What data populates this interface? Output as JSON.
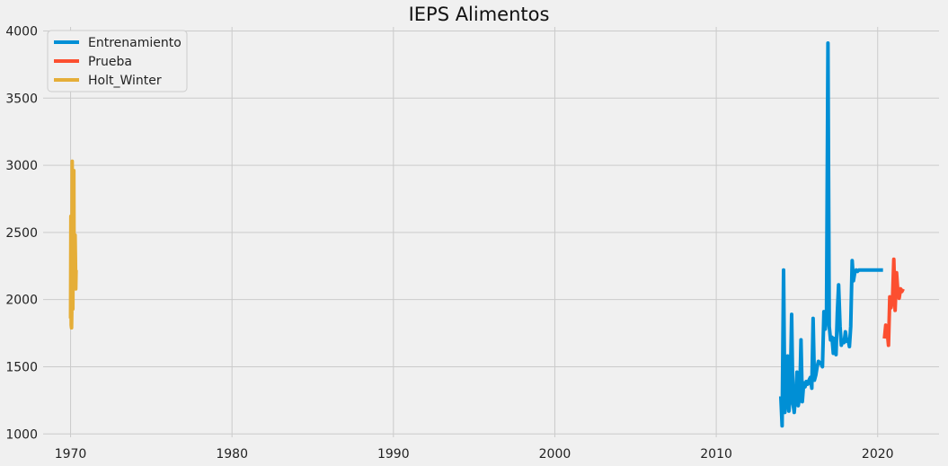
{
  "chart_data": {
    "type": "line",
    "title": "IEPS Alimentos",
    "xlabel": "",
    "ylabel": "",
    "xlim": [
      1968.3,
      2023.8
    ],
    "ylim": [
      975,
      4030
    ],
    "x_ticks": [
      1970,
      1980,
      1990,
      2000,
      2010,
      2020
    ],
    "y_ticks": [
      1000,
      1500,
      2000,
      2500,
      3000,
      3500,
      4000
    ],
    "grid": true,
    "legend_position": "top-left",
    "series": [
      {
        "name": "Entrenamiento",
        "color": "#008fd5",
        "x": [
          2014.0,
          2014.08,
          2014.17,
          2014.25,
          2014.33,
          2014.42,
          2014.5,
          2014.58,
          2014.67,
          2014.75,
          2014.83,
          2014.92,
          2015.0,
          2015.08,
          2015.17,
          2015.25,
          2015.33,
          2015.42,
          2015.5,
          2015.58,
          2015.67,
          2015.75,
          2015.83,
          2015.92,
          2016.0,
          2016.08,
          2016.17,
          2016.25,
          2016.33,
          2016.42,
          2016.5,
          2016.58,
          2016.67,
          2016.75,
          2016.83,
          2016.92,
          2017.0,
          2017.08,
          2017.17,
          2017.25,
          2017.33,
          2017.42,
          2017.5,
          2017.58,
          2017.67,
          2017.75,
          2017.83,
          2017.92,
          2018.0,
          2018.08,
          2018.17,
          2018.25,
          2018.33,
          2018.42,
          2018.5,
          2018.58,
          2018.67,
          2018.75,
          2018.83,
          2018.92,
          2019.0,
          2019.08,
          2019.17,
          2019.25,
          2019.33,
          2019.42,
          2019.5,
          2019.58,
          2019.67,
          2019.75,
          2019.83,
          2019.92,
          2020.0,
          2020.08,
          2020.17,
          2020.25,
          2020.33
        ],
        "y": [
          1280,
          1060,
          2220,
          1160,
          1250,
          1580,
          1170,
          1290,
          1890,
          1230,
          1160,
          1300,
          1460,
          1210,
          1280,
          1700,
          1240,
          1380,
          1350,
          1390,
          1370,
          1400,
          1420,
          1340,
          1860,
          1400,
          1440,
          1500,
          1540,
          1530,
          1520,
          1500,
          1910,
          1780,
          1870,
          3910,
          1800,
          1700,
          1720,
          1600,
          1710,
          1590,
          1900,
          2110,
          1800,
          1660,
          1700,
          1680,
          1760,
          1690,
          1700,
          1650,
          1800,
          2290,
          2140,
          2200,
          2220,
          2210,
          2220,
          2220,
          2220,
          2220,
          2220,
          2220,
          2220,
          2220,
          2220,
          2220,
          2220,
          2220,
          2220,
          2220,
          2220,
          2220,
          2220,
          2220,
          2220
        ]
      },
      {
        "name": "Prueba",
        "color": "#fc4f30",
        "x": [
          2020.42,
          2020.5,
          2020.58,
          2020.67,
          2020.75,
          2020.83,
          2020.92,
          2021.0,
          2021.08,
          2021.17,
          2021.25,
          2021.33,
          2021.42,
          2021.5,
          2021.58
        ],
        "y": [
          1710,
          1810,
          1780,
          1660,
          2020,
          1940,
          2000,
          2300,
          1920,
          2200,
          2060,
          2010,
          2080,
          2060,
          2080
        ]
      },
      {
        "name": "Holt_Winter",
        "color": "#e5ae38",
        "x": [
          1970.0,
          1970.02,
          1970.04,
          1970.06,
          1970.08,
          1970.1,
          1970.12,
          1970.14,
          1970.16,
          1970.18,
          1970.2,
          1970.22,
          1970.24,
          1970.26,
          1970.28,
          1970.3,
          1970.32,
          1970.34
        ],
        "y": [
          1860,
          2620,
          1810,
          1790,
          1950,
          3030,
          2100,
          1930,
          2500,
          2380,
          2960,
          2140,
          2300,
          2250,
          2480,
          2310,
          2080,
          2220
        ]
      }
    ]
  }
}
